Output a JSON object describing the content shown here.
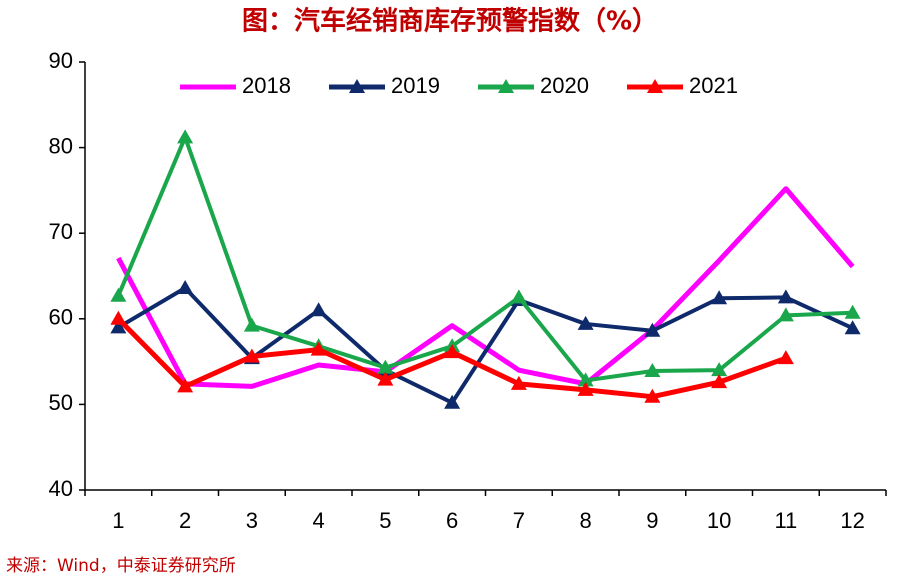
{
  "chart_data": {
    "type": "line",
    "title": "图：汽车经销商库存预警指数（%）",
    "source": "来源：Wind，中泰证券研究所",
    "categories": [
      "1",
      "2",
      "3",
      "4",
      "5",
      "6",
      "7",
      "8",
      "9",
      "10",
      "11",
      "12"
    ],
    "series": [
      {
        "name": "2018",
        "color": "#ff00ff",
        "markers": false,
        "values": [
          67.1,
          52.4,
          52.1,
          54.6,
          53.8,
          59.2,
          54.0,
          52.4,
          58.7,
          66.8,
          75.2,
          66.1
        ]
      },
      {
        "name": "2019",
        "color": "#0f2a6b",
        "markers": true,
        "values": [
          59.0,
          63.6,
          55.4,
          61.0,
          54.0,
          50.2,
          62.2,
          59.4,
          58.6,
          62.4,
          62.5,
          58.9
        ]
      },
      {
        "name": "2020",
        "color": "#1aa64a",
        "markers": true,
        "values": [
          62.7,
          81.2,
          59.2,
          56.8,
          54.3,
          56.8,
          62.5,
          52.8,
          53.9,
          54.0,
          60.4,
          60.7
        ]
      },
      {
        "name": "2021",
        "color": "#ff0000",
        "markers": true,
        "values": [
          60.0,
          52.1,
          55.6,
          56.4,
          52.9,
          56.1,
          52.4,
          51.7,
          50.9,
          52.6,
          55.4,
          null
        ]
      }
    ],
    "ylim": [
      40,
      90
    ],
    "yticks": [
      40,
      50,
      60,
      70,
      80,
      90
    ],
    "grid": false,
    "legend": "top"
  }
}
